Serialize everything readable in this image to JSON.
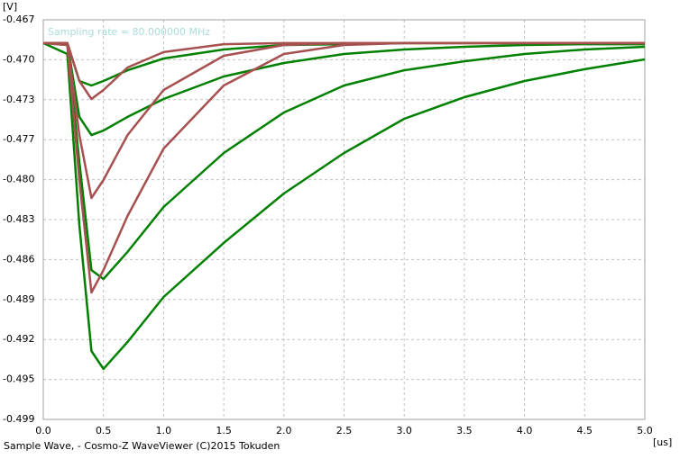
{
  "chart_data": {
    "type": "line",
    "annotation": "Sampling rate = 80.000000 MHz",
    "y_label": "[V]",
    "x_label": "[us]",
    "caption": "Sample Wave, - Cosmo-Z WaveViewer (C)2015 Tokuden",
    "grid": true,
    "xlim": [
      0,
      5
    ],
    "ylim": [
      -0.499,
      -0.467
    ],
    "xticks": [
      {
        "value": 0,
        "label": "0.0"
      },
      0.5,
      {
        "value": 1,
        "label": "1.0"
      },
      1.5,
      {
        "value": 2,
        "label": "2.0"
      },
      2.5,
      {
        "value": 3,
        "label": "3.0"
      },
      3.5,
      {
        "value": 4,
        "label": "4.0"
      },
      4.5,
      {
        "value": 5,
        "label": "5.0"
      }
    ],
    "yticks": [
      {
        "value": -0.467,
        "label": "-0.467"
      },
      {
        "value": -0.4702,
        "label": "-0.470"
      },
      {
        "value": -0.4734,
        "label": "-0.473"
      },
      {
        "value": -0.4766,
        "label": "-0.477"
      },
      {
        "value": -0.4798,
        "label": "-0.480"
      },
      {
        "value": -0.483,
        "label": "-0.483"
      },
      {
        "value": -0.4862,
        "label": "-0.486"
      },
      {
        "value": -0.4894,
        "label": "-0.489"
      },
      {
        "value": -0.4926,
        "label": "-0.492"
      },
      {
        "value": -0.4958,
        "label": "-0.495"
      },
      {
        "value": -0.499,
        "label": "-0.499"
      }
    ],
    "x": [
      0,
      0.2,
      0.3,
      0.4,
      0.5,
      0.7,
      1.0,
      1.5,
      2.0,
      2.5,
      3.0,
      3.5,
      4.0,
      4.5,
      5.0
    ],
    "series": [
      {
        "color": "#008000",
        "values": [
          -0.46887,
          -0.46974,
          -0.48343,
          -0.49352,
          -0.49496,
          -0.4928,
          -0.4892,
          -0.48487,
          -0.48091,
          -0.47767,
          -0.47493,
          -0.4732,
          -0.4719,
          -0.47096,
          -0.47017
        ]
      },
      {
        "color": "#008000",
        "values": [
          -0.46887,
          -0.46902,
          -0.47839,
          -0.48704,
          -0.48776,
          -0.48559,
          -0.48199,
          -0.47767,
          -0.47442,
          -0.47226,
          -0.47104,
          -0.47032,
          -0.46974,
          -0.46938,
          -0.46916
        ]
      },
      {
        "color": "#008000",
        "values": [
          -0.46887,
          -0.46887,
          -0.47478,
          -0.47623,
          -0.47587,
          -0.47478,
          -0.47334,
          -0.47154,
          -0.47046,
          -0.46974,
          -0.46938,
          -0.46916,
          -0.46902,
          -0.46895,
          -0.46895
        ]
      },
      {
        "color": "#008000",
        "values": [
          -0.46887,
          -0.46887,
          -0.4719,
          -0.47226,
          -0.4719,
          -0.47104,
          -0.4701,
          -0.46938,
          -0.46902,
          -0.46895,
          -0.46887,
          -0.46887,
          -0.46887,
          -0.46887,
          -0.46887
        ]
      },
      {
        "color": "#a65050",
        "values": [
          -0.46887,
          -0.46902,
          -0.47983,
          -0.48884,
          -0.48704,
          -0.48271,
          -0.47731,
          -0.47226,
          -0.46974,
          -0.46902,
          -0.46887,
          -0.46887,
          -0.46887,
          -0.46887,
          -0.46887
        ]
      },
      {
        "color": "#a65050",
        "values": [
          -0.46887,
          -0.46887,
          -0.47623,
          -0.48127,
          -0.47983,
          -0.47623,
          -0.47262,
          -0.46988,
          -0.46902,
          -0.46887,
          -0.46887,
          -0.46887,
          -0.46887,
          -0.46887,
          -0.46887
        ]
      },
      {
        "color": "#a65050",
        "values": [
          -0.46887,
          -0.46887,
          -0.4719,
          -0.47334,
          -0.47262,
          -0.47082,
          -0.46959,
          -0.46895,
          -0.46887,
          -0.46887,
          -0.46887,
          -0.46887,
          -0.46887,
          -0.46887,
          -0.46887
        ]
      }
    ]
  }
}
